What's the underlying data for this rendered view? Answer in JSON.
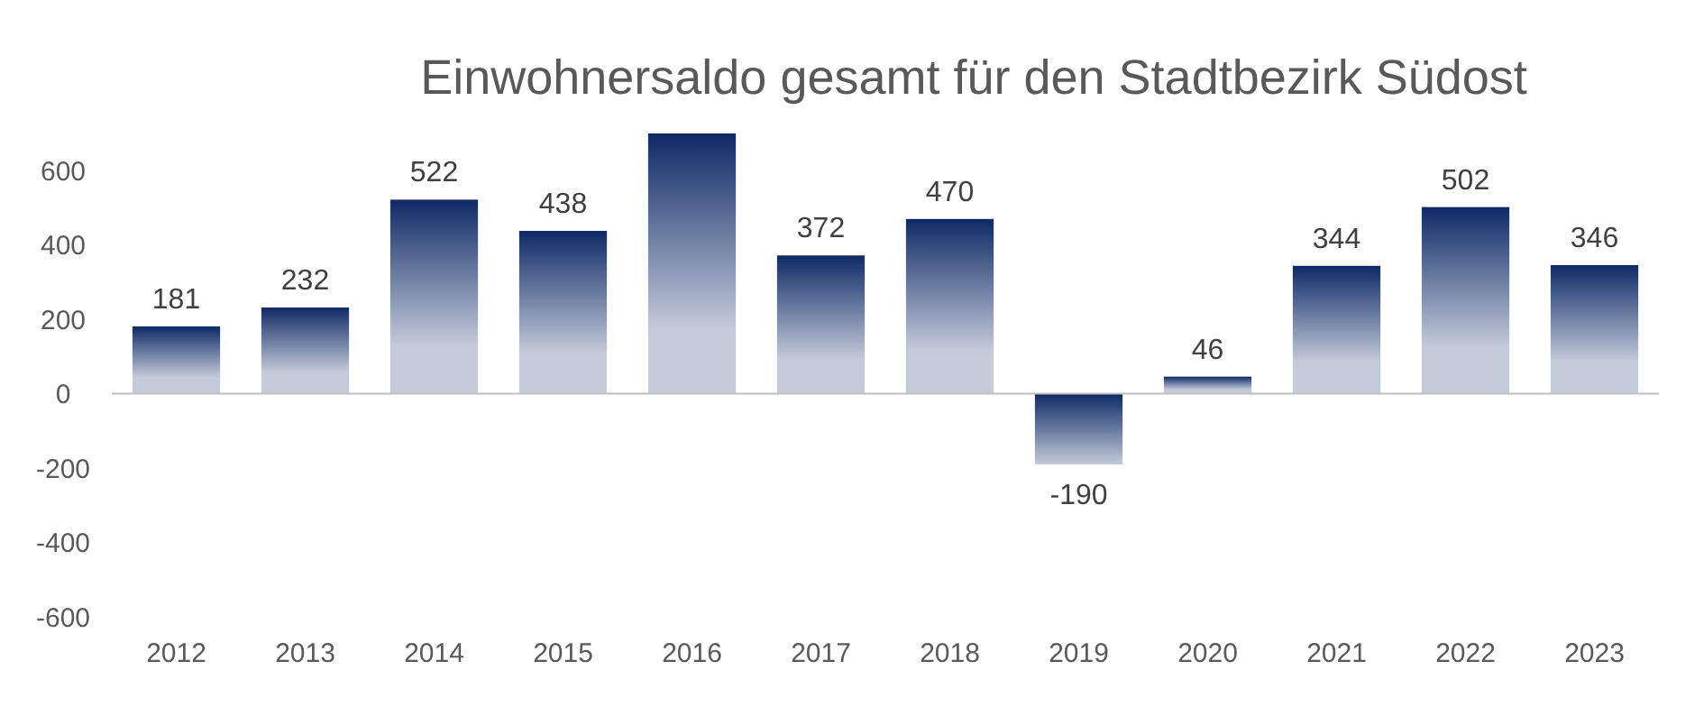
{
  "chart_data": {
    "type": "bar",
    "title": "Einwohnersaldo gesamt für den Stadtbezirk Südost",
    "categories": [
      "2012",
      "2013",
      "2014",
      "2015",
      "2016",
      "2017",
      "2018",
      "2019",
      "2020",
      "2021",
      "2022",
      "2023"
    ],
    "values": [
      181,
      232,
      522,
      438,
      700,
      372,
      470,
      -190,
      46,
      344,
      502,
      346
    ],
    "value_labels": [
      "181",
      "232",
      "522",
      "438",
      null,
      "372",
      "470",
      "-190",
      "46",
      "344",
      "502",
      "346"
    ],
    "color": "#0e2a66",
    "ylim": [
      -600,
      700
    ],
    "yticks": [
      -600,
      -400,
      -200,
      0,
      200,
      400,
      600
    ]
  }
}
